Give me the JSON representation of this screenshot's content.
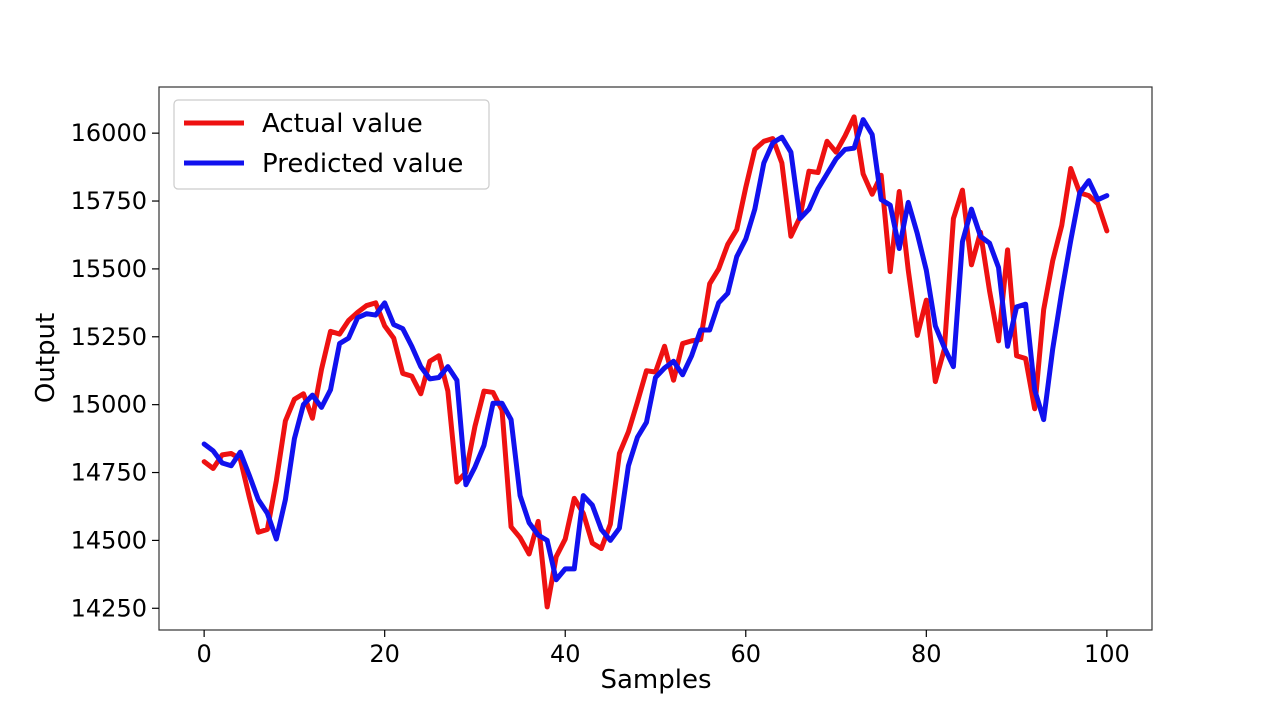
{
  "chart_data": {
    "type": "line",
    "title": "",
    "xlabel": "Samples",
    "ylabel": "Output",
    "xlim": [
      -5,
      105
    ],
    "ylim": [
      14170,
      16170
    ],
    "xticks": [
      0,
      20,
      40,
      60,
      80,
      100
    ],
    "yticks": [
      14250,
      14500,
      14750,
      15000,
      15250,
      15500,
      15750,
      16000
    ],
    "legend_position": "top-left",
    "grid": false,
    "series": [
      {
        "name": "Actual value",
        "color": "#ee1111",
        "values": [
          14790,
          14765,
          14815,
          14820,
          14800,
          14660,
          14530,
          14540,
          14720,
          14940,
          15020,
          15040,
          14950,
          15130,
          15270,
          15260,
          15310,
          15340,
          15365,
          15375,
          15290,
          15245,
          15115,
          15105,
          15040,
          15160,
          15180,
          15050,
          14715,
          14750,
          14920,
          15050,
          15045,
          14980,
          14550,
          14510,
          14450,
          14570,
          14255,
          14440,
          14505,
          14655,
          14600,
          14490,
          14470,
          14560,
          14820,
          14900,
          15010,
          15125,
          15120,
          15215,
          15090,
          15225,
          15235,
          15240,
          15445,
          15500,
          15590,
          15645,
          15800,
          15940,
          15970,
          15980,
          15890,
          15620,
          15690,
          15860,
          15855,
          15970,
          15930,
          15990,
          16060,
          15850,
          15775,
          15845,
          15490,
          15785,
          15495,
          15255,
          15385,
          15085,
          15205,
          15685,
          15790,
          15515,
          15635,
          15420,
          15235,
          15570,
          15180,
          15170,
          14985,
          15350,
          15530,
          15660,
          15870,
          15780,
          15770,
          15740,
          15640
        ]
      },
      {
        "name": "Predicted value",
        "color": "#1111ee",
        "values": [
          14855,
          14830,
          14785,
          14775,
          14825,
          14740,
          14650,
          14600,
          14505,
          14650,
          14875,
          15000,
          15035,
          14990,
          15055,
          15225,
          15245,
          15320,
          15335,
          15330,
          15375,
          15295,
          15280,
          15215,
          15140,
          15095,
          15100,
          15140,
          15090,
          14705,
          14770,
          14850,
          15005,
          15005,
          14945,
          14665,
          14565,
          14520,
          14500,
          14355,
          14395,
          14395,
          14665,
          14630,
          14540,
          14500,
          14545,
          14775,
          14880,
          14935,
          15100,
          15135,
          15160,
          15110,
          15180,
          15275,
          15275,
          15375,
          15410,
          15545,
          15610,
          15720,
          15890,
          15965,
          15985,
          15930,
          15685,
          15720,
          15795,
          15850,
          15905,
          15940,
          15945,
          16050,
          15995,
          15755,
          15735,
          15575,
          15745,
          15630,
          15495,
          15290,
          15210,
          15140,
          15600,
          15720,
          15620,
          15595,
          15505,
          15215,
          15360,
          15370,
          15055,
          14945,
          15205,
          15415,
          15605,
          15780,
          15825,
          15755,
          15770
        ]
      }
    ]
  }
}
